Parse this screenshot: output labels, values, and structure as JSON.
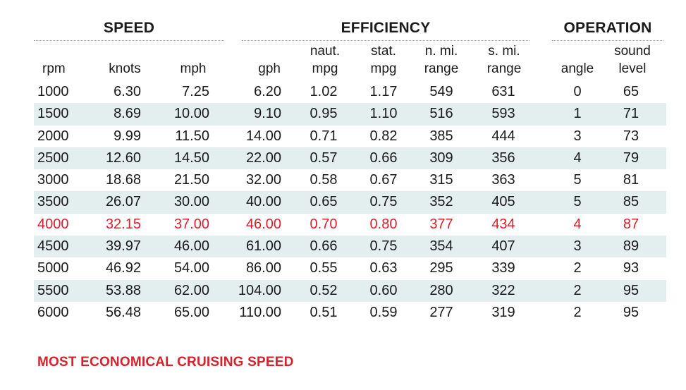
{
  "chart_data": {
    "type": "table",
    "groups": [
      {
        "title": "SPEED"
      },
      {
        "title": "EFFICIENCY"
      },
      {
        "title": "OPERATION"
      }
    ],
    "columns": [
      {
        "line1": "",
        "line2": "rpm"
      },
      {
        "line1": "",
        "line2": "knots"
      },
      {
        "line1": "",
        "line2": "mph"
      },
      {
        "line1": "",
        "line2": "gph"
      },
      {
        "line1": "naut.",
        "line2": "mpg"
      },
      {
        "line1": "stat.",
        "line2": "mpg"
      },
      {
        "line1": "n. mi.",
        "line2": "range"
      },
      {
        "line1": "s. mi.",
        "line2": "range"
      },
      {
        "line1": "",
        "line2": "angle"
      },
      {
        "line1": "sound",
        "line2": "level"
      }
    ],
    "rows": [
      [
        "1000",
        "6.30",
        "7.25",
        "6.20",
        "1.02",
        "1.17",
        "549",
        "631",
        "0",
        "65"
      ],
      [
        "1500",
        "8.69",
        "10.00",
        "9.10",
        "0.95",
        "1.10",
        "516",
        "593",
        "1",
        "71"
      ],
      [
        "2000",
        "9.99",
        "11.50",
        "14.00",
        "0.71",
        "0.82",
        "385",
        "444",
        "3",
        "73"
      ],
      [
        "2500",
        "12.60",
        "14.50",
        "22.00",
        "0.57",
        "0.66",
        "309",
        "356",
        "4",
        "79"
      ],
      [
        "3000",
        "18.68",
        "21.50",
        "32.00",
        "0.58",
        "0.67",
        "315",
        "363",
        "5",
        "81"
      ],
      [
        "3500",
        "26.07",
        "30.00",
        "40.00",
        "0.65",
        "0.75",
        "352",
        "405",
        "5",
        "85"
      ],
      [
        "4000",
        "32.15",
        "37.00",
        "46.00",
        "0.70",
        "0.80",
        "377",
        "434",
        "4",
        "87"
      ],
      [
        "4500",
        "39.97",
        "46.00",
        "61.00",
        "0.66",
        "0.75",
        "354",
        "407",
        "3",
        "89"
      ],
      [
        "5000",
        "46.92",
        "54.00",
        "86.00",
        "0.55",
        "0.63",
        "295",
        "339",
        "2",
        "93"
      ],
      [
        "5500",
        "53.88",
        "62.00",
        "104.00",
        "0.52",
        "0.60",
        "280",
        "322",
        "2",
        "95"
      ],
      [
        "6000",
        "56.48",
        "65.00",
        "110.00",
        "0.51",
        "0.59",
        "277",
        "319",
        "2",
        "95"
      ]
    ],
    "highlight_row": 6,
    "highlight_color": "#d9202b",
    "stripe_color": "#e3eeee"
  },
  "footnote": "MOST ECONOMICAL CRUISING SPEED"
}
